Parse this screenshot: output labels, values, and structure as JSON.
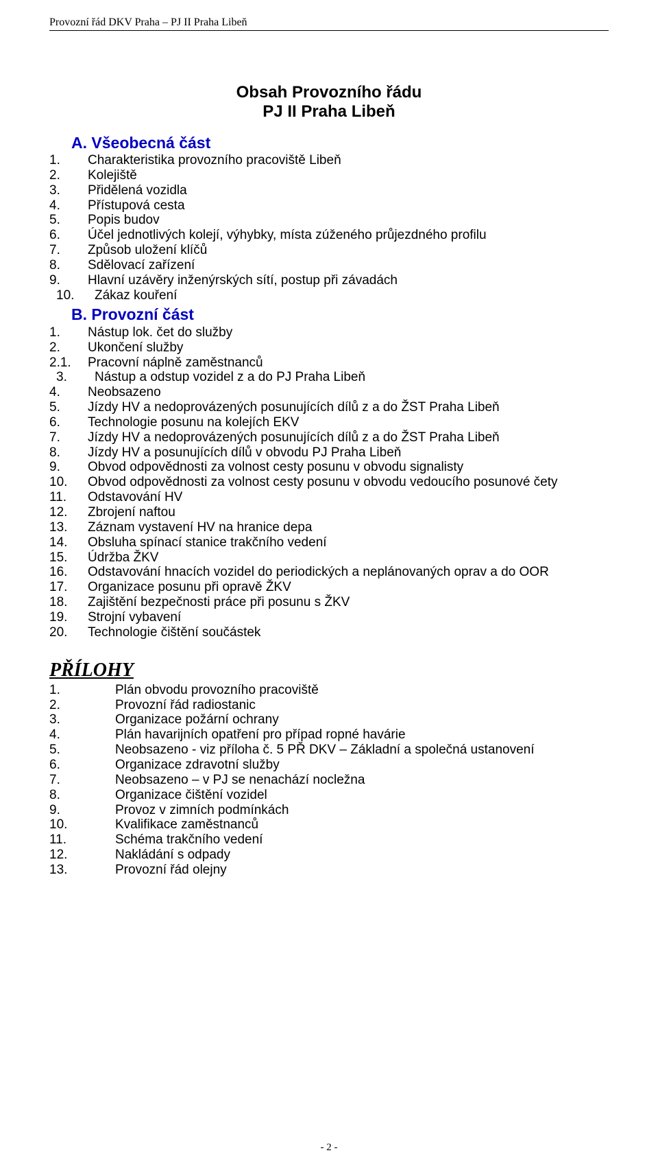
{
  "colors": {
    "text": "#000000",
    "heading_blue": "#0000c0",
    "background": "#ffffff",
    "rule": "#000000"
  },
  "typography": {
    "body_family": "Arial",
    "body_size_pt": 14,
    "title_size_pt": 18,
    "title_weight": "bold",
    "section_head_size_pt": 17,
    "section_head_weight": "bold",
    "running_head_family": "Times New Roman",
    "running_head_size_pt": 12,
    "attachments_head_family": "Times New Roman",
    "attachments_head_size_pt": 21,
    "attachments_head_style": "bold italic underline",
    "page_number_family": "Times New Roman",
    "page_number_size_pt": 11
  },
  "running_head": "Provozní řád DKV Praha – PJ II Praha Libeň",
  "title": {
    "line1": "Obsah Provozního řádu",
    "line2": "PJ II Praha Libeň"
  },
  "section_a": {
    "label": "A. Všeobecná část",
    "items": [
      {
        "n": "1.",
        "t": "Charakteristika provozního pracoviště Libeň"
      },
      {
        "n": "2.",
        "t": "Kolejiště"
      },
      {
        "n": "3.",
        "t": "Přidělená vozidla"
      },
      {
        "n": "4.",
        "t": "Přístupová cesta"
      },
      {
        "n": "5.",
        "t": "Popis budov"
      },
      {
        "n": "6.",
        "t": "Účel jednotlivých kolejí, výhybky, místa zúženého průjezdného profilu"
      },
      {
        "n": "7.",
        "t": "Způsob uložení klíčů"
      },
      {
        "n": "8.",
        "t": "Sdělovací zařízení"
      },
      {
        "n": "9.",
        "t": "Hlavní uzávěry inženýrských sítí, postup při závadách"
      },
      {
        "n": "10.",
        "t": "Zákaz kouření",
        "shift": true
      }
    ]
  },
  "section_b": {
    "label": "B. Provozní část",
    "items": [
      {
        "n": "1.",
        "t": "Nástup lok. čet do služby"
      },
      {
        "n": "2.",
        "t": "Ukončení služby"
      },
      {
        "n": "2.1.",
        "t": "Pracovní náplně zaměstnanců"
      },
      {
        "n": "3.",
        "t": "Nástup a odstup vozidel z a do PJ Praha Libeň",
        "shift": true
      },
      {
        "n": "4.",
        "t": "Neobsazeno"
      },
      {
        "n": "5.",
        "t": "Jízdy HV a nedoprovázených posunujících dílů z a do ŽST Praha Libeň"
      },
      {
        "n": "6.",
        "t": "Technologie posunu na kolejích EKV"
      },
      {
        "n": "7.",
        "t": "Jízdy HV a nedoprovázených posunujících dílů z a do ŽST Praha Libeň"
      },
      {
        "n": "8.",
        "t": "Jízdy HV a posunujících dílů v obvodu PJ Praha Libeň"
      },
      {
        "n": "9.",
        "t": "Obvod odpovědnosti za volnost cesty posunu v obvodu signalisty"
      },
      {
        "n": "10.",
        "t": "Obvod odpovědnosti za volnost cesty posunu v obvodu vedoucího posunové čety"
      },
      {
        "n": "11.",
        "t": "Odstavování HV"
      },
      {
        "n": "12.",
        "t": "Zbrojení naftou"
      },
      {
        "n": "13.",
        "t": "Záznam vystavení HV na hranice depa"
      },
      {
        "n": "14.",
        "t": "Obsluha spínací stanice trakčního vedení"
      },
      {
        "n": "15.",
        "t": "Údržba ŽKV"
      },
      {
        "n": "16.",
        "t": "Odstavování hnacích vozidel do periodických a neplánovaných oprav a do OOR"
      },
      {
        "n": "17.",
        "t": "Organizace posunu při opravě ŽKV"
      },
      {
        "n": "18.",
        "t": "Zajištění bezpečnosti práce při posunu s ŽKV"
      },
      {
        "n": "19.",
        "t": "Strojní vybavení"
      },
      {
        "n": "20.",
        "t": "Technologie čištění součástek"
      }
    ]
  },
  "attachments": {
    "label": "PŘÍLOHY",
    "items": [
      {
        "n": "1.",
        "t": "Plán obvodu provozního pracoviště"
      },
      {
        "n": "2.",
        "t": "Provozní řád radiostanic"
      },
      {
        "n": "3.",
        "t": "Organizace požární ochrany"
      },
      {
        "n": "4.",
        "t": "Plán havarijních opatření pro případ ropné havárie"
      },
      {
        "n": "5.",
        "t": "Neobsazeno - viz příloha č. 5 PŘ DKV – Základní a společná ustanovení"
      },
      {
        "n": "6.",
        "t": "Organizace zdravotní služby"
      },
      {
        "n": "7.",
        "t": "Neobsazeno – v PJ se nenachází nocležna"
      },
      {
        "n": "8.",
        "t": "Organizace čištění vozidel"
      },
      {
        "n": "9.",
        "t": "Provoz v zimních podmínkách"
      },
      {
        "n": "10.",
        "t": "Kvalifikace zaměstnanců"
      },
      {
        "n": "11.",
        "t": "Schéma trakčního vedení"
      },
      {
        "n": "12.",
        "t": "Nakládání s odpady"
      },
      {
        "n": "13.",
        "t": "Provozní řád olejny"
      }
    ]
  },
  "page_number": "- 2 -"
}
